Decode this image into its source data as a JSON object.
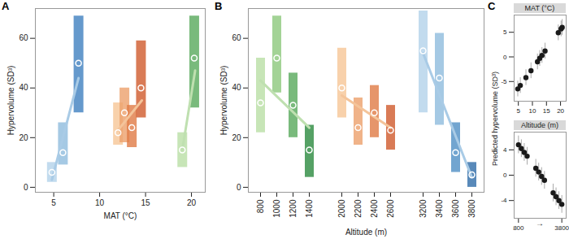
{
  "chart_data": [
    {
      "type": "scatter",
      "panel_label": "A",
      "xlabel": "MAT (°C)",
      "ylabel": "Hypervolume (SD³)",
      "xlim": [
        3,
        21.5
      ],
      "ylim": [
        -2,
        72
      ],
      "xticks": [
        5,
        10,
        15,
        20
      ],
      "yticks": [
        0,
        20,
        40,
        60
      ],
      "series": [
        {
          "x": [
            4.8,
            6.0,
            7.7
          ],
          "low": [
            2,
            9,
            30
          ],
          "high": [
            10,
            26,
            69
          ],
          "mean": [
            6,
            14,
            50
          ],
          "colors": [
            "#b3d2ea",
            "#8fbbdd",
            "#3f7fbf"
          ],
          "fit": {
            "x": [
              4.8,
              7.7
            ],
            "y": [
              3,
              44
            ],
            "color": "#a9cbe6"
          }
        },
        {
          "x": [
            12.0,
            12.7,
            13.5,
            14.5
          ],
          "low": [
            17,
            18,
            16,
            28
          ],
          "high": [
            34,
            40,
            33,
            59
          ],
          "mean": [
            22,
            30,
            24,
            40
          ],
          "colors": [
            "#f6c596",
            "#eca06b",
            "#e07b45",
            "#d05a2c"
          ],
          "fit": {
            "x": [
              12.0,
              14.6
            ],
            "y": [
              23,
              35
            ],
            "color": "#f4c49a"
          }
        },
        {
          "x": [
            19.0,
            20.3
          ],
          "low": [
            8,
            32
          ],
          "high": [
            22,
            69
          ],
          "mean": [
            15,
            52
          ],
          "colors": [
            "#b9dea5",
            "#58a95b"
          ],
          "fit": {
            "x": [
              19.0,
              20.4
            ],
            "y": [
              15,
              47
            ],
            "color": "#bfe0b0"
          }
        }
      ]
    },
    {
      "type": "scatter",
      "panel_label": "B",
      "xlabel": "Altitude (m)",
      "ylabel": "Hypervolume (SD³)",
      "categories": [
        "800",
        "1000",
        "1200",
        "1400",
        null,
        "2000",
        "2200",
        "2400",
        "2600",
        null,
        "3200",
        "3400",
        "3600",
        "3800"
      ],
      "ylim": [
        -2,
        72
      ],
      "yticks": [
        0,
        20,
        40,
        60
      ],
      "series": [
        {
          "x": [
            "800",
            "1000",
            "1200",
            "1400"
          ],
          "low": [
            22,
            38,
            20,
            4
          ],
          "high": [
            52,
            69,
            46,
            25
          ],
          "mean": [
            34,
            52,
            33,
            15
          ],
          "colors": [
            "#b9dea5",
            "#8cc87c",
            "#58a95b",
            "#2b8a3e"
          ],
          "fit": {
            "x": [
              "800",
              "1400"
            ],
            "y": [
              43,
              24
            ],
            "color": "#bfe0b0"
          }
        },
        {
          "x": [
            "2000",
            "2200",
            "2400",
            "2600"
          ],
          "low": [
            28,
            17,
            20,
            15
          ],
          "high": [
            56,
            36,
            41,
            33
          ],
          "mean": [
            40,
            24,
            30,
            23
          ],
          "colors": [
            "#f6c596",
            "#eca06b",
            "#e07b45",
            "#d05a2c"
          ],
          "fit": {
            "x": [
              "2000",
              "2600"
            ],
            "y": [
              37,
              24
            ],
            "color": "#f4c49a"
          }
        },
        {
          "x": [
            "3200",
            "3400",
            "3600",
            "3800"
          ],
          "low": [
            30,
            25,
            6,
            0
          ],
          "high": [
            71,
            62,
            26,
            10
          ],
          "mean": [
            55,
            44,
            14,
            5
          ],
          "colors": [
            "#b3d2ea",
            "#8fbbdd",
            "#4f8fc4",
            "#2e6ca8"
          ],
          "fit": {
            "x": [
              "3200",
              "3800"
            ],
            "y": [
              54,
              4
            ],
            "color": "#a9cbe6"
          }
        }
      ]
    },
    {
      "type": "scatter",
      "panel_label": "C",
      "title": "MAT (°C)",
      "ylabel": "Predicted hypervolume (SD³)",
      "xlim": [
        3.5,
        22
      ],
      "ylim": [
        -9,
        8.5
      ],
      "xticks": [
        5,
        10,
        15,
        20
      ],
      "yticks": [
        -5,
        0,
        5
      ],
      "color": "#1a1a1a",
      "x": [
        4.8,
        5.7,
        7.7,
        9.5,
        11.8,
        12.6,
        13.4,
        14.5,
        19.2,
        20.2,
        20.6
      ],
      "values": [
        -6.5,
        -5.8,
        -4.2,
        -2.8,
        -1.0,
        -0.3,
        0.3,
        1.2,
        4.9,
        5.7,
        6.0
      ],
      "error_low": [
        -8.1,
        -7.4,
        -5.8,
        -4.4,
        -2.6,
        -1.9,
        -1.3,
        -0.4,
        3.3,
        4.1,
        4.4
      ],
      "error_high": [
        -4.9,
        -4.2,
        -2.6,
        -1.2,
        0.6,
        1.3,
        1.9,
        2.8,
        6.5,
        7.3,
        7.6
      ]
    },
    {
      "type": "scatter",
      "title": "Altitude (m)",
      "annotation": "→",
      "xlim": [
        500,
        4100
      ],
      "ylim": [
        -6.8,
        6.8
      ],
      "xticks": [
        800,
        3800
      ],
      "yticks": [
        -4,
        0,
        4
      ],
      "color": "#1a1a1a",
      "x": [
        800,
        1000,
        1200,
        1400,
        2000,
        2200,
        2400,
        2600,
        3200,
        3400,
        3600,
        3800
      ],
      "values": [
        4.8,
        4.2,
        3.6,
        3.0,
        1.1,
        0.5,
        -0.2,
        -0.8,
        -2.8,
        -3.4,
        -4.0,
        -4.6
      ],
      "error_low": [
        3.4,
        2.8,
        2.2,
        1.6,
        -0.3,
        -0.9,
        -1.6,
        -2.2,
        -4.2,
        -4.8,
        -5.4,
        -6.0
      ],
      "error_high": [
        6.2,
        5.6,
        5.0,
        4.4,
        2.5,
        1.9,
        1.2,
        0.6,
        -1.4,
        -2.0,
        -2.6,
        -3.2
      ]
    }
  ]
}
